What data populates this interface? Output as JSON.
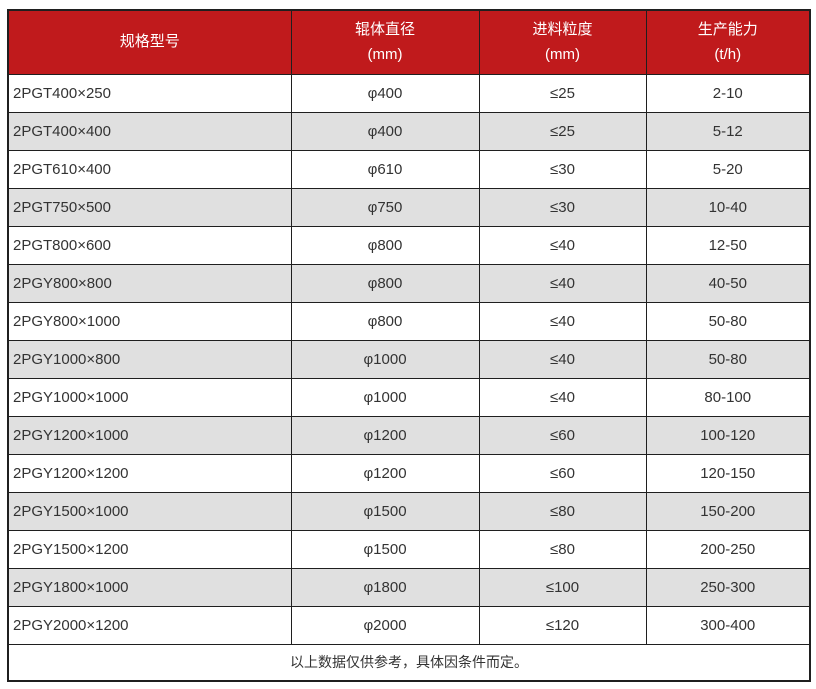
{
  "colors": {
    "header_bg": "#C01A1C",
    "header_text": "#FFFFFF",
    "row_alt_bg": "#E0E0E0",
    "row_bg": "#FFFFFF",
    "border": "#1F1F1F",
    "body_text": "#333333",
    "page_bg": "#FFFFFF"
  },
  "chart_data": {
    "type": "table",
    "columns": [
      {
        "label": "规格型号",
        "unit": ""
      },
      {
        "label": "辊体直径",
        "unit": "(mm)"
      },
      {
        "label": "进料粒度",
        "unit": "(mm)"
      },
      {
        "label": "生产能力",
        "unit": "(t/h)"
      }
    ],
    "rows": [
      [
        "2PGT400×250",
        "φ400",
        "≤25",
        "2-10"
      ],
      [
        "2PGT400×400",
        "φ400",
        "≤25",
        "5-12"
      ],
      [
        "2PGT610×400",
        "φ610",
        "≤30",
        "5-20"
      ],
      [
        "2PGT750×500",
        "φ750",
        "≤30",
        "10-40"
      ],
      [
        "2PGT800×600",
        "φ800",
        "≤40",
        "12-50"
      ],
      [
        "2PGY800×800",
        "φ800",
        "≤40",
        "40-50"
      ],
      [
        "2PGY800×1000",
        "φ800",
        "≤40",
        "50-80"
      ],
      [
        "2PGY1000×800",
        "φ1000",
        "≤40",
        "50-80"
      ],
      [
        "2PGY1000×1000",
        "φ1000",
        "≤40",
        "80-100"
      ],
      [
        "2PGY1200×1000",
        "φ1200",
        "≤60",
        "100-120"
      ],
      [
        "2PGY1200×1200",
        "φ1200",
        "≤60",
        "120-150"
      ],
      [
        "2PGY1500×1000",
        "φ1500",
        "≤80",
        "150-200"
      ],
      [
        "2PGY1500×1200",
        "φ1500",
        "≤80",
        "200-250"
      ],
      [
        "2PGY1800×1000",
        "φ1800",
        "≤100",
        "250-300"
      ],
      [
        "2PGY2000×1200",
        "φ2000",
        "≤120",
        "300-400"
      ]
    ],
    "footnote": "以上数据仅供参考，具体因条件而定。"
  }
}
